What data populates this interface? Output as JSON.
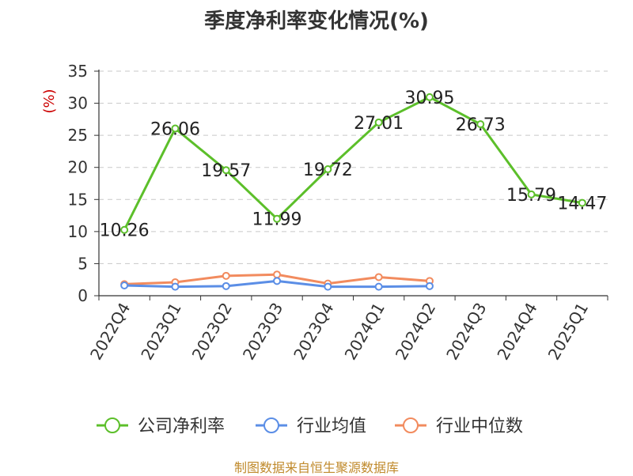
{
  "title": "季度净利率变化情况(%)",
  "source": "制图数据来自恒生聚源数据库",
  "colors": {
    "company": "#5cbf2a",
    "industry_avg": "#5b8ee6",
    "industry_median": "#f28b5e",
    "source": "#c08a2c",
    "ylabel": "#cc0000"
  },
  "chart_data": {
    "type": "line",
    "title": "季度净利率变化情况(%)",
    "ylabel": "(%)",
    "xlabel": "",
    "ylim": [
      0,
      35
    ],
    "yticks": [
      0,
      5,
      10,
      15,
      20,
      25,
      30,
      35
    ],
    "grid": true,
    "legend": "bottom",
    "categories": [
      "2022Q4",
      "2023Q1",
      "2023Q2",
      "2023Q3",
      "2023Q4",
      "2024Q1",
      "2024Q2",
      "2024Q3",
      "2024Q4",
      "2025Q1"
    ],
    "series": [
      {
        "name": "公司净利率",
        "values": [
          10.26,
          26.06,
          19.57,
          11.99,
          19.72,
          27.01,
          30.95,
          26.73,
          15.79,
          14.47
        ],
        "labels": [
          "10.26",
          "26.06",
          "19.57",
          "11.99",
          "19.72",
          "27.01",
          "30.95",
          "26.73",
          "15.79",
          "14.47"
        ]
      },
      {
        "name": "行业均值",
        "values": [
          1.6,
          1.4,
          1.5,
          2.3,
          1.4,
          1.4,
          1.5,
          null,
          null,
          null
        ]
      },
      {
        "name": "行业中位数",
        "values": [
          1.8,
          2.1,
          3.1,
          3.3,
          1.9,
          2.9,
          2.3,
          null,
          null,
          null
        ]
      }
    ]
  }
}
